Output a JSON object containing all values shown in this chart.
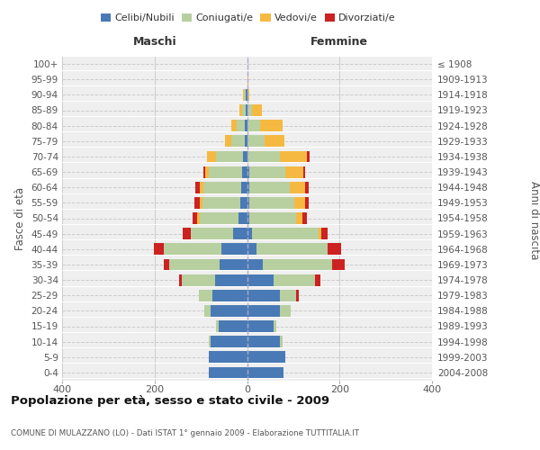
{
  "age_groups": [
    "0-4",
    "5-9",
    "10-14",
    "15-19",
    "20-24",
    "25-29",
    "30-34",
    "35-39",
    "40-44",
    "45-49",
    "50-54",
    "55-59",
    "60-64",
    "65-69",
    "70-74",
    "75-79",
    "80-84",
    "85-89",
    "90-94",
    "95-99",
    "100+"
  ],
  "birth_years": [
    "2004-2008",
    "1999-2003",
    "1994-1998",
    "1989-1993",
    "1984-1988",
    "1979-1983",
    "1974-1978",
    "1969-1973",
    "1964-1968",
    "1959-1963",
    "1954-1958",
    "1949-1953",
    "1944-1948",
    "1939-1943",
    "1934-1938",
    "1929-1933",
    "1924-1928",
    "1919-1923",
    "1914-1918",
    "1909-1913",
    "≤ 1908"
  ],
  "maschi": {
    "celibi": [
      82,
      82,
      78,
      62,
      78,
      75,
      70,
      60,
      55,
      30,
      18,
      15,
      13,
      10,
      8,
      5,
      4,
      3,
      2,
      0,
      0
    ],
    "coniugati": [
      0,
      0,
      5,
      5,
      15,
      30,
      72,
      108,
      125,
      92,
      85,
      82,
      82,
      72,
      60,
      30,
      18,
      8,
      5,
      0,
      0
    ],
    "vedovi": [
      0,
      0,
      0,
      0,
      0,
      0,
      0,
      0,
      0,
      0,
      5,
      5,
      8,
      8,
      18,
      12,
      12,
      6,
      2,
      0,
      0
    ],
    "divorziati": [
      0,
      0,
      0,
      0,
      0,
      0,
      5,
      12,
      22,
      18,
      10,
      12,
      8,
      5,
      0,
      0,
      0,
      0,
      0,
      0,
      0
    ]
  },
  "femmine": {
    "nubili": [
      78,
      82,
      72,
      58,
      72,
      72,
      58,
      35,
      20,
      10,
      5,
      5,
      5,
      5,
      0,
      0,
      0,
      0,
      0,
      0,
      0
    ],
    "coniugate": [
      0,
      0,
      5,
      5,
      22,
      35,
      88,
      148,
      155,
      145,
      102,
      98,
      88,
      78,
      72,
      38,
      28,
      10,
      0,
      0,
      0
    ],
    "vedove": [
      0,
      0,
      0,
      0,
      0,
      0,
      0,
      0,
      0,
      5,
      12,
      22,
      32,
      38,
      58,
      42,
      48,
      22,
      5,
      2,
      0
    ],
    "divorziate": [
      0,
      0,
      0,
      0,
      0,
      5,
      12,
      28,
      28,
      15,
      10,
      8,
      8,
      5,
      5,
      0,
      0,
      0,
      0,
      0,
      0
    ]
  },
  "colors": {
    "celibi_nubili": "#4a7ab5",
    "coniugati": "#b8cfa0",
    "vedovi": "#f5b942",
    "divorziati": "#cc2222"
  },
  "xlim": 400,
  "title": "Popolazione per età, sesso e stato civile - 2009",
  "subtitle": "COMUNE DI MULAZZANO (LO) - Dati ISTAT 1° gennaio 2009 - Elaborazione TUTTITALIA.IT",
  "ylabel_left": "Fasce di età",
  "ylabel_right": "Anni di nascita",
  "xlabel_maschi": "Maschi",
  "xlabel_femmine": "Femmine",
  "bg_color": "#efefef",
  "legend_labels": [
    "Celibi/Nubili",
    "Coniugati/e",
    "Vedovi/e",
    "Divorziati/e"
  ]
}
